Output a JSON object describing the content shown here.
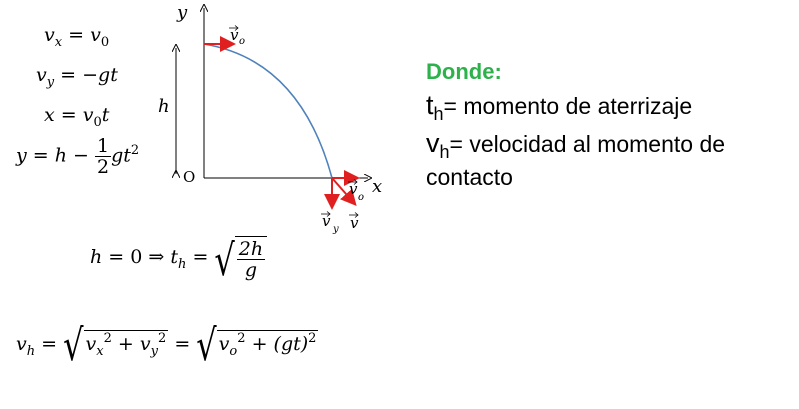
{
  "equations": {
    "vx": {
      "lhs": "v",
      "lhs_sub": "x",
      "eq": "=",
      "rhs": "v",
      "rhs_sub": "0"
    },
    "vy": {
      "lhs": "v",
      "lhs_sub": "y",
      "eq": "=",
      "rhs": "−gt"
    },
    "x": {
      "lhs": "x",
      "eq": "=",
      "rhs": "v",
      "rhs_sub": "0",
      "rhs_tail": "t"
    },
    "y": {
      "lhs": "y",
      "eq": "=",
      "rhs": "h −",
      "frac_num": "1",
      "frac_den": "2",
      "tail": "gt",
      "tail_sup": "2"
    }
  },
  "landing": {
    "h": "h",
    "eq1": "= 0",
    "implies": "⇒",
    "t": "t",
    "t_sub": "h",
    "eq2": "=",
    "num": "2h",
    "den": "g"
  },
  "velocity": {
    "v": "v",
    "v_sub": "h",
    "eq": "=",
    "vx": "v",
    "vx_sub": "x",
    "vx_sup": "2",
    "plus": "+",
    "vy": "v",
    "vy_sub": "y",
    "vy_sup": "2",
    "eq2": "=",
    "vo": "v",
    "vo_sub": "o",
    "vo_sup": "2",
    "plus2": "+",
    "gt": "(gt)",
    "gt_sup": "2"
  },
  "diagram": {
    "axis_y": "y",
    "axis_x": "x",
    "origin": "O",
    "height": "h",
    "v0_top": "v",
    "v0_top_sub": "o",
    "v0_bottom": "v",
    "v0_bottom_sub": "o",
    "vy": "v",
    "vy_sub": "y",
    "v": "v",
    "curve_color": "#4f81bd",
    "arrow_color": "#e02020"
  },
  "description": {
    "title": "Donde:",
    "line1_var": "t",
    "line1_sub": "h",
    "line1_text": "= momento de aterrizaje",
    "line2_var": "v",
    "line2_sub": "h",
    "line2_text": "= velocidad al momento de",
    "line3_text": "contacto",
    "title_color": "#2db14b"
  }
}
